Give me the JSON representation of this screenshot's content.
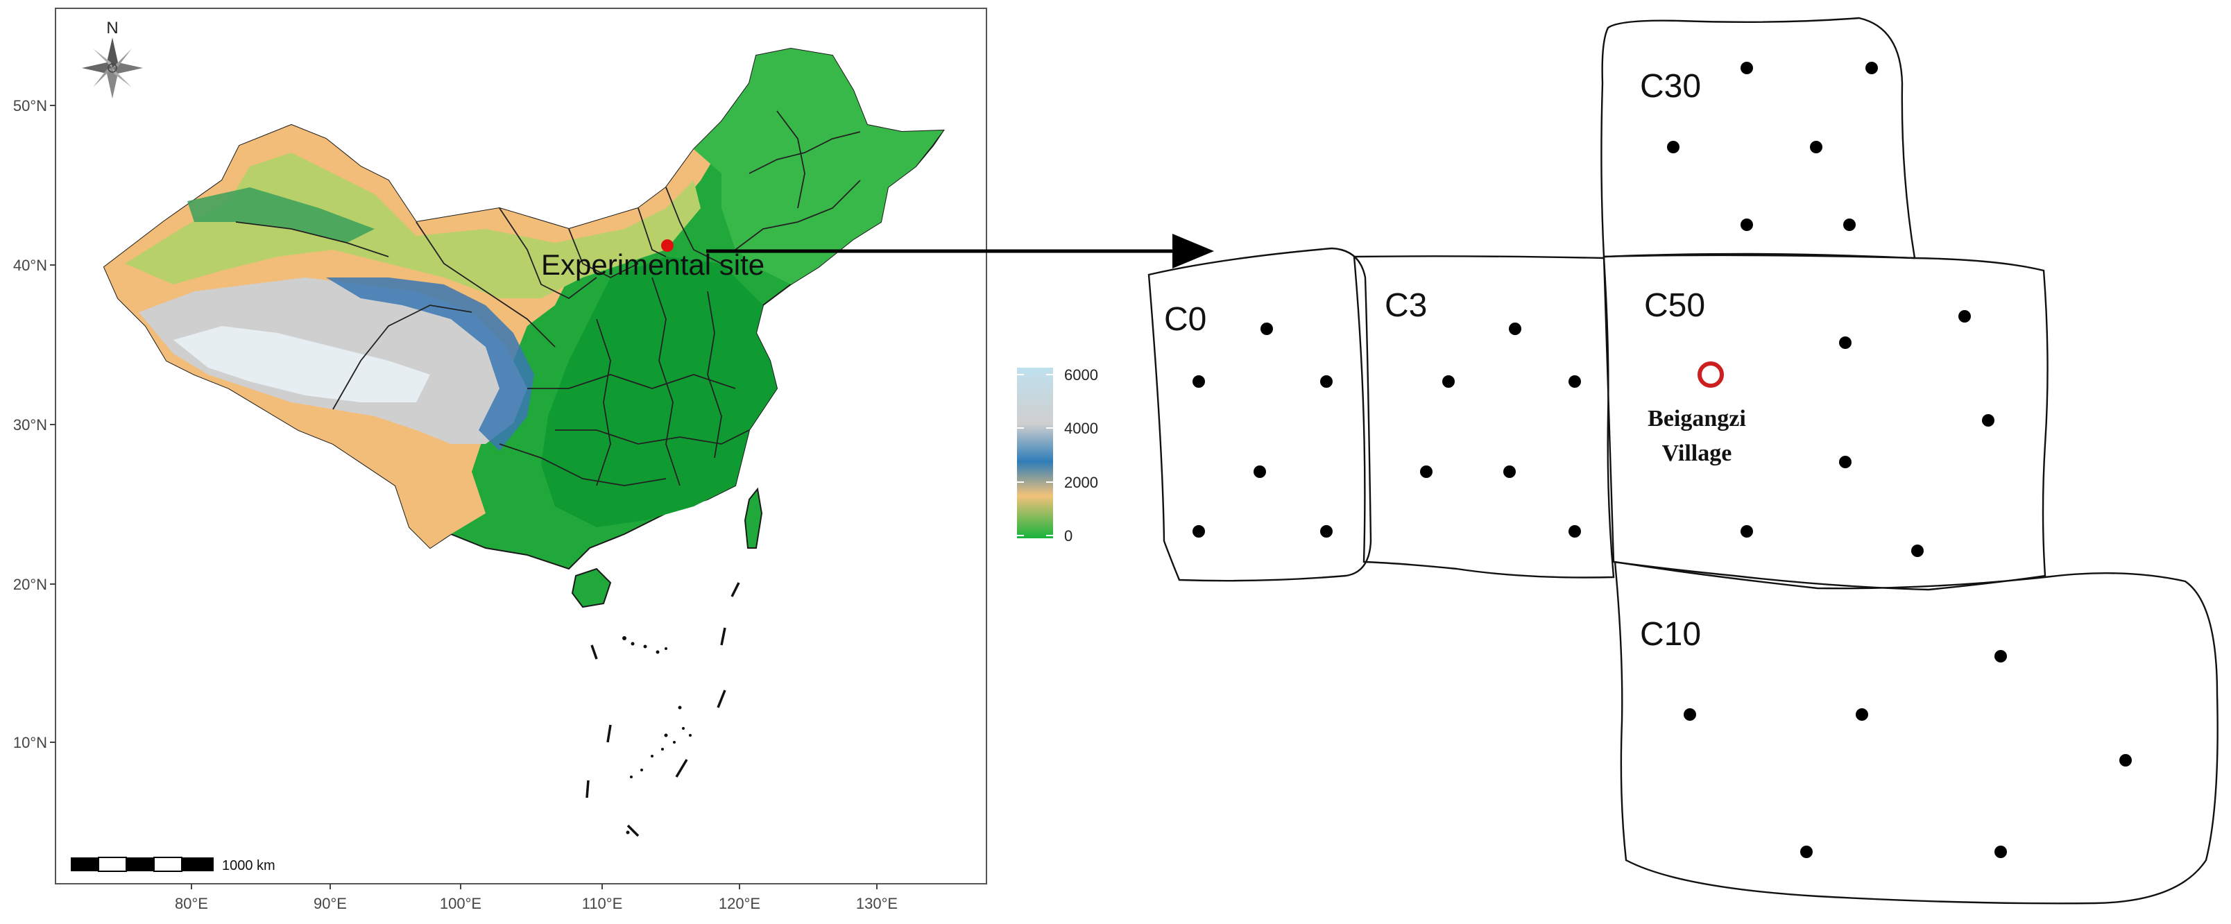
{
  "map": {
    "lat_ticks": [
      "50°N",
      "40°N",
      "30°N",
      "20°N",
      "10°N"
    ],
    "lon_ticks": [
      "80°E",
      "90°E",
      "100°E",
      "110°E",
      "120°E",
      "130°E"
    ],
    "north_label": "N",
    "scale_label": "1000 km",
    "site_label": "Experimental site",
    "colors": {
      "lowland": "#1fa83a",
      "mid": "#f5c07a",
      "high": "#2f6fb0",
      "peak": "#d9d9d9",
      "site_marker": "#e01010"
    }
  },
  "legend": {
    "labels": [
      "6000",
      "4000",
      "2000",
      "0"
    ],
    "gradient": [
      "#bfe0ee",
      "#cfcfcf",
      "#2f7db8",
      "#f2c27a",
      "#16b33b"
    ]
  },
  "plots": [
    {
      "id": "C0",
      "label": "C0"
    },
    {
      "id": "C3",
      "label": "C3"
    },
    {
      "id": "C30",
      "label": "C30"
    },
    {
      "id": "C50",
      "label": "C50"
    },
    {
      "id": "C10",
      "label": "C10"
    }
  ],
  "village": {
    "line1": "Beigangzi",
    "line2": "Village",
    "marker_color": "#cc1f1f"
  }
}
